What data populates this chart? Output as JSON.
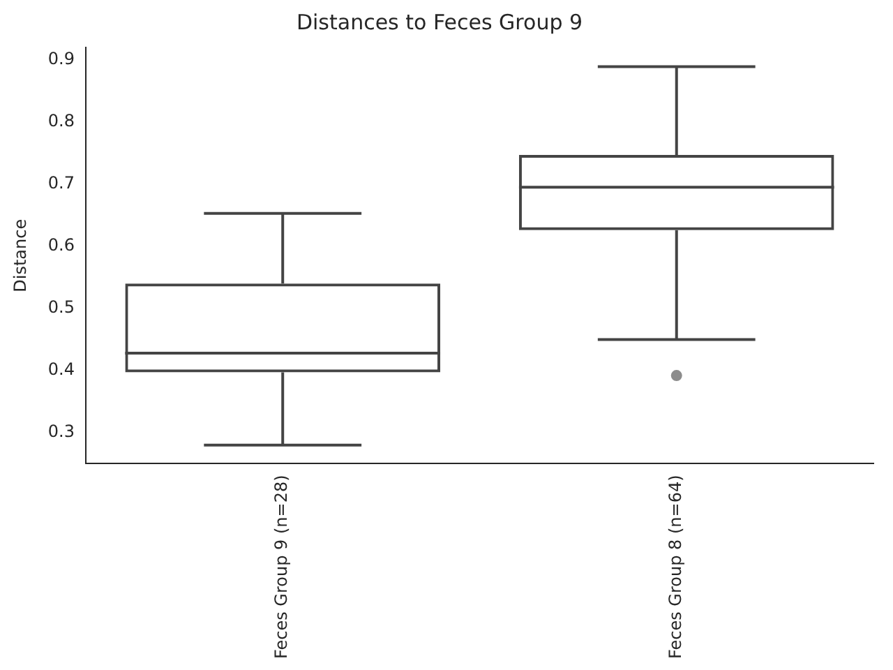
{
  "chart_data": {
    "type": "box",
    "title": "Distances to Feces Group 9",
    "ylabel": "Distance",
    "categories": [
      "Feces Group 9 (n=28)",
      "Feces Group 8 (n=64)"
    ],
    "series": [
      {
        "color": "#444444",
        "boxes": [
          {
            "low": 0.28,
            "q1": 0.397,
            "median": 0.428,
            "q3": 0.54,
            "high": 0.653
          },
          {
            "low": 0.45,
            "q1": 0.626,
            "median": 0.695,
            "q3": 0.747,
            "high": 0.889,
            "outliers": [
              0.392
            ]
          }
        ]
      }
    ],
    "ylim": [
      0.25,
      0.92
    ],
    "yticks": [
      0.3,
      0.4,
      0.5,
      0.6,
      0.7,
      0.8,
      0.9
    ],
    "grid": false
  }
}
